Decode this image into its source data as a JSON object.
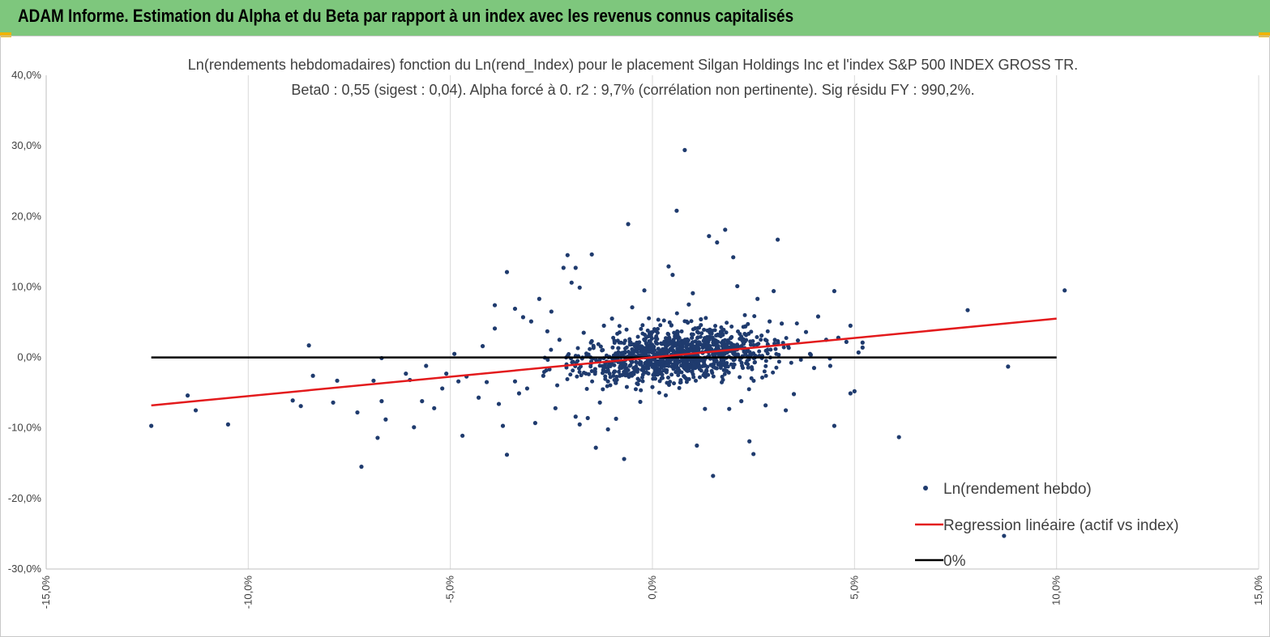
{
  "banner": {
    "title": "ADAM Informe. Estimation du Alpha et du Beta par rapport à un index avec les revenus connus capitalisés"
  },
  "chart_data": {
    "type": "scatter",
    "title_line1": "Ln(rendements hebdomadaires) fonction du Ln(rend_Index) pour le placement Silgan Holdings Inc et l'index S&P 500 INDEX GROSS TR.",
    "title_line2": "Beta0 : 0,55 (sigest : 0,04).  Alpha forcé à 0. r2 : 9,7% (corrélation non pertinente). Sig résidu FY : 990,2%.",
    "xlim": [
      -0.15,
      0.15
    ],
    "ylim": [
      -0.3,
      0.4
    ],
    "x_ticks": [
      "-15,0%",
      "-10,0%",
      "-5,0%",
      "0,0%",
      "5,0%",
      "10,0%",
      "15,0%"
    ],
    "y_ticks": [
      "40,0%",
      "30,0%",
      "20,0%",
      "10,0%",
      "0,0%",
      "-10,0%",
      "-20,0%",
      "-30,0%"
    ],
    "grid": "vertical",
    "legend_position": "bottom-right",
    "colors": {
      "points": "#1f3b6e",
      "regression": "#e31a1c",
      "zero": "#000000",
      "banner": "#7ec77d"
    },
    "series": [
      {
        "name": "Ln(rendement hebdo)",
        "kind": "points",
        "points": [
          [
            -0.124,
            -0.097
          ],
          [
            -0.115,
            -0.054
          ],
          [
            -0.113,
            -0.075
          ],
          [
            -0.105,
            -0.095
          ],
          [
            -0.085,
            0.017
          ],
          [
            -0.084,
            -0.026
          ],
          [
            -0.089,
            -0.061
          ],
          [
            -0.087,
            -0.069
          ],
          [
            -0.078,
            -0.033
          ],
          [
            -0.079,
            -0.064
          ],
          [
            -0.073,
            -0.078
          ],
          [
            -0.072,
            -0.155
          ],
          [
            -0.069,
            -0.033
          ],
          [
            -0.068,
            -0.114
          ],
          [
            -0.067,
            -0.062
          ],
          [
            -0.067,
            -0.001
          ],
          [
            -0.066,
            -0.088
          ],
          [
            -0.061,
            -0.023
          ],
          [
            -0.06,
            -0.032
          ],
          [
            -0.059,
            -0.099
          ],
          [
            -0.057,
            -0.062
          ],
          [
            -0.056,
            -0.012
          ],
          [
            -0.054,
            -0.072
          ],
          [
            -0.052,
            -0.044
          ],
          [
            -0.051,
            -0.023
          ],
          [
            -0.049,
            0.005
          ],
          [
            -0.048,
            -0.034
          ],
          [
            -0.047,
            -0.111
          ],
          [
            -0.046,
            -0.027
          ],
          [
            -0.043,
            -0.057
          ],
          [
            -0.042,
            0.016
          ],
          [
            -0.041,
            -0.035
          ],
          [
            -0.039,
            0.074
          ],
          [
            -0.039,
            0.041
          ],
          [
            -0.038,
            -0.066
          ],
          [
            -0.036,
            -0.138
          ],
          [
            -0.036,
            0.121
          ],
          [
            -0.034,
            0.069
          ],
          [
            -0.034,
            -0.034
          ],
          [
            -0.037,
            -0.097
          ],
          [
            -0.033,
            -0.051
          ],
          [
            -0.032,
            0.057
          ],
          [
            -0.031,
            -0.044
          ],
          [
            -0.03,
            0.051
          ],
          [
            -0.029,
            -0.093
          ],
          [
            -0.028,
            0.083
          ],
          [
            -0.027,
            -0.026
          ],
          [
            -0.026,
            0.037
          ],
          [
            -0.025,
            0.065
          ],
          [
            -0.024,
            -0.072
          ],
          [
            -0.023,
            0.025
          ],
          [
            -0.022,
            0.127
          ],
          [
            -0.021,
            0.145
          ],
          [
            -0.02,
            0.106
          ],
          [
            -0.019,
            0.127
          ],
          [
            -0.019,
            -0.084
          ],
          [
            -0.018,
            0.099
          ],
          [
            -0.018,
            -0.095
          ],
          [
            -0.017,
            0.035
          ],
          [
            -0.016,
            -0.086
          ],
          [
            -0.015,
            0.023
          ],
          [
            -0.015,
            0.146
          ],
          [
            -0.014,
            -0.128
          ],
          [
            -0.013,
            -0.064
          ],
          [
            -0.012,
            0.045
          ],
          [
            -0.011,
            -0.034
          ],
          [
            -0.011,
            -0.102
          ],
          [
            -0.01,
            0.055
          ],
          [
            -0.009,
            -0.087
          ],
          [
            -0.007,
            -0.144
          ],
          [
            -0.006,
            0.189
          ],
          [
            -0.005,
            0.071
          ],
          [
            -0.003,
            -0.063
          ],
          [
            -0.002,
            0.095
          ],
          [
            0.0,
            -0.042
          ],
          [
            0.004,
            0.129
          ],
          [
            0.005,
            0.117
          ],
          [
            0.006,
            0.208
          ],
          [
            0.008,
            0.294
          ],
          [
            0.009,
            0.075
          ],
          [
            0.01,
            0.091
          ],
          [
            0.011,
            -0.125
          ],
          [
            0.012,
            0.054
          ],
          [
            0.013,
            -0.073
          ],
          [
            0.014,
            0.172
          ],
          [
            0.015,
            -0.168
          ],
          [
            0.016,
            0.163
          ],
          [
            0.017,
            0.035
          ],
          [
            0.018,
            0.181
          ],
          [
            0.019,
            -0.073
          ],
          [
            0.02,
            0.142
          ],
          [
            0.021,
            0.101
          ],
          [
            0.022,
            -0.062
          ],
          [
            0.023,
            0.044
          ],
          [
            0.024,
            -0.119
          ],
          [
            0.025,
            -0.137
          ],
          [
            0.026,
            0.083
          ],
          [
            0.027,
            0.031
          ],
          [
            0.028,
            -0.068
          ],
          [
            0.029,
            0.051
          ],
          [
            0.03,
            0.094
          ],
          [
            0.031,
            0.167
          ],
          [
            0.032,
            0.048
          ],
          [
            0.033,
            -0.075
          ],
          [
            0.035,
            -0.052
          ],
          [
            0.036,
            0.024
          ],
          [
            0.038,
            0.036
          ],
          [
            0.039,
            0.005
          ],
          [
            0.04,
            -0.015
          ],
          [
            0.041,
            0.058
          ],
          [
            0.043,
            0.025
          ],
          [
            0.044,
            -0.012
          ],
          [
            0.045,
            0.094
          ],
          [
            0.045,
            -0.097
          ],
          [
            0.046,
            0.028
          ],
          [
            0.048,
            0.022
          ],
          [
            0.049,
            -0.051
          ],
          [
            0.049,
            0.045
          ],
          [
            0.05,
            -0.048
          ],
          [
            0.051,
            0.007
          ],
          [
            0.052,
            0.014
          ],
          [
            0.052,
            0.021
          ],
          [
            0.061,
            -0.113
          ],
          [
            0.078,
            0.067
          ],
          [
            0.087,
            -0.253
          ],
          [
            0.088,
            -0.013
          ],
          [
            0.102,
            0.095
          ]
        ]
      },
      {
        "name": "Regression linéaire (actif vs index)",
        "kind": "line",
        "x": [
          -0.124,
          0.1
        ],
        "y": [
          -0.068,
          0.055
        ]
      },
      {
        "name": "0%",
        "kind": "line",
        "x": [
          -0.124,
          0.1
        ],
        "y": [
          0.0,
          0.0
        ]
      }
    ]
  }
}
